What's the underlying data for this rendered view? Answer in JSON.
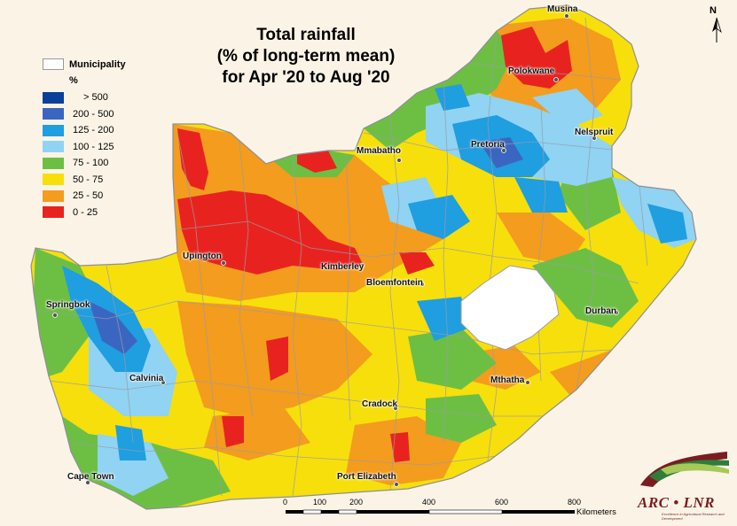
{
  "title": {
    "line1": "Total rainfall",
    "line2": "(% of long-term mean)",
    "line3": "for Apr '20 to Aug '20"
  },
  "legend": {
    "municipality_label": "Municipality",
    "unit": "%",
    "classes": [
      {
        "label": "> 500",
        "color": "#08409b"
      },
      {
        "label": "200 - 500",
        "color": "#3a66c1"
      },
      {
        "label": "125 - 200",
        "color": "#1f9ee0"
      },
      {
        "label": "100 - 125",
        "color": "#90d3f2"
      },
      {
        "label": "75 - 100",
        "color": "#6dbf44"
      },
      {
        "label": "50 - 75",
        "color": "#f7df0b"
      },
      {
        "label": "25 - 50",
        "color": "#f39c1e"
      },
      {
        "label": "0 - 25",
        "color": "#e8231f"
      }
    ]
  },
  "cities": {
    "musina": "Musina",
    "polokwane": "Polokwane",
    "mmabatho": "Mmabatho",
    "pretoria": "Pretoria",
    "nelspruit": "Nelspruit",
    "upington": "Upington",
    "kimberley": "Kimberley",
    "bloemfontein": "Bloemfontein",
    "springbok": "Springbok",
    "durban": "Durban",
    "calvinia": "Calvinia",
    "mthatha": "Mthatha",
    "cradock": "Cradock",
    "cape_town": "Cape Town",
    "port_elizabeth": "Port Elizabeth"
  },
  "north_arrow": "N",
  "scale_bar": {
    "ticks": [
      "0",
      "100",
      "200",
      "400",
      "600",
      "800"
    ],
    "unit": "Kilometers"
  },
  "logo": {
    "text": "ARC • LNR",
    "subtitle": "Excellence in Agricultural Research and Development"
  },
  "colors": {
    "background": "#fbf4e6",
    "lesotho": "#ffffff",
    "boundary": "#9b9ba8",
    "logo_red": "#7b1c21",
    "logo_green": "#2e7d3a"
  }
}
